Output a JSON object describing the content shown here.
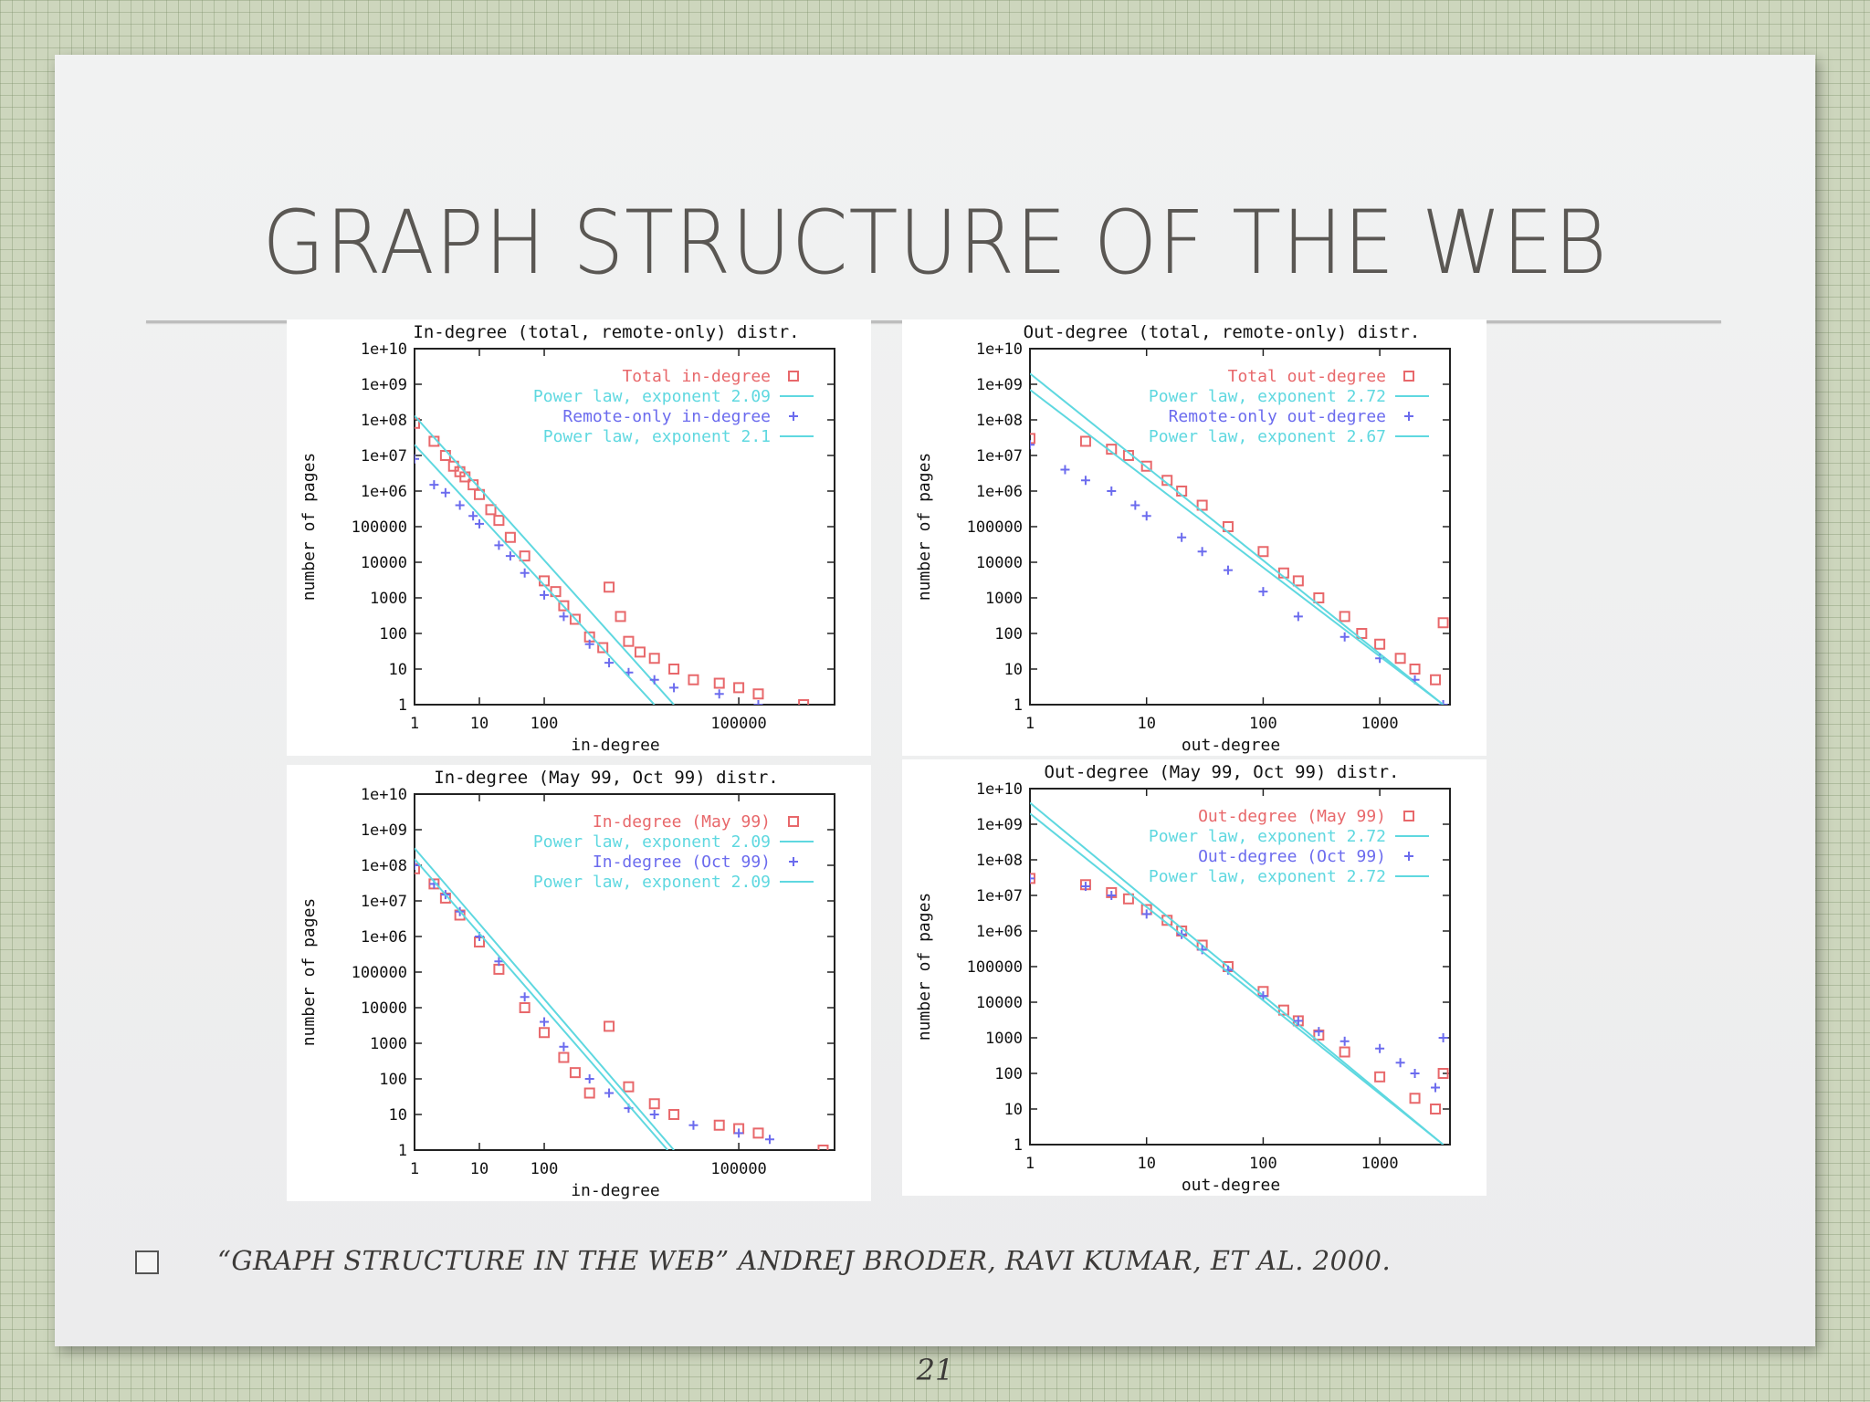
{
  "slide": {
    "title": "GRAPH STRUCTURE OF THE WEB",
    "citation": "“GRAPH STRUCTURE IN THE WEB” ANDREJ  BRODER, RAVI KUMAR, ET AL. 2000.",
    "page_number": "21"
  },
  "colors": {
    "red": "#e8686b",
    "blue": "#6b6bee",
    "cyan": "#5fd8e0",
    "axis": "#222222"
  },
  "chart_data": [
    {
      "type": "scatter",
      "title": "In-degree (total, remote-only) distr.",
      "xlabel": "in-degree",
      "ylabel": "number of pages",
      "x_scale": "log",
      "y_scale": "log",
      "xlim": [
        1,
        3000000
      ],
      "ylim": [
        1,
        10000000000
      ],
      "x_ticks": [
        {
          "v": 1,
          "label": "1"
        },
        {
          "v": 10,
          "label": "10"
        },
        {
          "v": 100,
          "label": "100"
        },
        {
          "v": 100000,
          "label": "100000"
        }
      ],
      "y_ticks": [
        {
          "v": 1,
          "label": "1"
        },
        {
          "v": 10,
          "label": "10"
        },
        {
          "v": 100,
          "label": "100"
        },
        {
          "v": 1000,
          "label": "1000"
        },
        {
          "v": 10000,
          "label": "10000"
        },
        {
          "v": 100000,
          "label": "100000"
        },
        {
          "v": 1000000,
          "label": "1e+06"
        },
        {
          "v": 10000000,
          "label": "1e+07"
        },
        {
          "v": 100000000,
          "label": "1e+08"
        },
        {
          "v": 1000000000,
          "label": "1e+09"
        },
        {
          "v": 10000000000,
          "label": "1e+10"
        }
      ],
      "legend_position": "top-right",
      "series": [
        {
          "name": "Total in-degree",
          "kind": "points",
          "marker": "square",
          "color": "#e8686b",
          "points": [
            [
              1,
              80000000
            ],
            [
              2,
              25000000
            ],
            [
              3,
              10000000
            ],
            [
              4,
              5000000
            ],
            [
              5,
              3500000
            ],
            [
              6,
              2500000
            ],
            [
              8,
              1500000
            ],
            [
              10,
              800000
            ],
            [
              15,
              300000
            ],
            [
              20,
              150000
            ],
            [
              30,
              50000
            ],
            [
              50,
              15000
            ],
            [
              100,
              3000
            ],
            [
              150,
              1500
            ],
            [
              200,
              600
            ],
            [
              300,
              250
            ],
            [
              500,
              80
            ],
            [
              800,
              40
            ],
            [
              1000,
              2000
            ],
            [
              1500,
              300
            ],
            [
              2000,
              60
            ],
            [
              3000,
              30
            ],
            [
              5000,
              20
            ],
            [
              10000,
              10
            ],
            [
              20000,
              5
            ],
            [
              50000,
              4
            ],
            [
              100000,
              3
            ],
            [
              200000,
              2
            ],
            [
              1000000,
              1
            ]
          ]
        },
        {
          "name": "Power law, exponent 2.09",
          "kind": "line",
          "color": "#5fd8e0",
          "from": [
            1,
            130000000
          ],
          "to": [
            10000,
            1
          ]
        },
        {
          "name": "Remote-only in-degree",
          "kind": "points",
          "marker": "plus",
          "color": "#6b6bee",
          "points": [
            [
              1,
              8000000
            ],
            [
              2,
              1500000
            ],
            [
              3,
              900000
            ],
            [
              5,
              400000
            ],
            [
              8,
              200000
            ],
            [
              10,
              120000
            ],
            [
              20,
              30000
            ],
            [
              30,
              15000
            ],
            [
              50,
              5000
            ],
            [
              100,
              1200
            ],
            [
              200,
              300
            ],
            [
              500,
              50
            ],
            [
              1000,
              15
            ],
            [
              2000,
              8
            ],
            [
              5000,
              5
            ],
            [
              10000,
              3
            ],
            [
              50000,
              2
            ],
            [
              200000,
              1
            ]
          ]
        },
        {
          "name": "Power law, exponent 2.1",
          "kind": "line",
          "color": "#5fd8e0",
          "from": [
            1,
            20000000
          ],
          "to": [
            5000,
            1
          ]
        }
      ]
    },
    {
      "type": "scatter",
      "title": "Out-degree (total, remote-only) distr.",
      "xlabel": "out-degree",
      "ylabel": "number of pages",
      "x_scale": "log",
      "y_scale": "log",
      "xlim": [
        1,
        4000
      ],
      "ylim": [
        1,
        10000000000
      ],
      "x_ticks": [
        {
          "v": 1,
          "label": "1"
        },
        {
          "v": 10,
          "label": "10"
        },
        {
          "v": 100,
          "label": "100"
        },
        {
          "v": 1000,
          "label": "1000"
        }
      ],
      "y_ticks": [
        {
          "v": 1,
          "label": "1"
        },
        {
          "v": 10,
          "label": "10"
        },
        {
          "v": 100,
          "label": "100"
        },
        {
          "v": 1000,
          "label": "1000"
        },
        {
          "v": 10000,
          "label": "10000"
        },
        {
          "v": 100000,
          "label": "100000"
        },
        {
          "v": 1000000,
          "label": "1e+06"
        },
        {
          "v": 10000000,
          "label": "1e+07"
        },
        {
          "v": 100000000,
          "label": "1e+08"
        },
        {
          "v": 1000000000,
          "label": "1e+09"
        },
        {
          "v": 10000000000,
          "label": "1e+10"
        }
      ],
      "legend_position": "top-right",
      "series": [
        {
          "name": "Total out-degree",
          "kind": "points",
          "marker": "square",
          "color": "#e8686b",
          "points": [
            [
              1,
              30000000
            ],
            [
              3,
              25000000
            ],
            [
              5,
              15000000
            ],
            [
              7,
              10000000
            ],
            [
              10,
              5000000
            ],
            [
              15,
              2000000
            ],
            [
              20,
              1000000
            ],
            [
              30,
              400000
            ],
            [
              50,
              100000
            ],
            [
              100,
              20000
            ],
            [
              150,
              5000
            ],
            [
              200,
              3000
            ],
            [
              300,
              1000
            ],
            [
              500,
              300
            ],
            [
              700,
              100
            ],
            [
              1000,
              50
            ],
            [
              1500,
              20
            ],
            [
              2000,
              10
            ],
            [
              3000,
              5
            ],
            [
              3500,
              200
            ]
          ]
        },
        {
          "name": "Power law, exponent 2.72",
          "kind": "line",
          "color": "#5fd8e0",
          "from": [
            1,
            2000000000
          ],
          "to": [
            3500,
            1
          ]
        },
        {
          "name": "Remote-only out-degree",
          "kind": "points",
          "marker": "plus",
          "color": "#6b6bee",
          "points": [
            [
              1,
              20000000
            ],
            [
              2,
              4000000
            ],
            [
              3,
              2000000
            ],
            [
              5,
              1000000
            ],
            [
              8,
              400000
            ],
            [
              10,
              200000
            ],
            [
              20,
              50000
            ],
            [
              30,
              20000
            ],
            [
              50,
              6000
            ],
            [
              100,
              1500
            ],
            [
              200,
              300
            ],
            [
              500,
              80
            ],
            [
              1000,
              20
            ],
            [
              2000,
              5
            ],
            [
              3500,
              1
            ]
          ]
        },
        {
          "name": "Power law, exponent 2.67",
          "kind": "line",
          "color": "#5fd8e0",
          "from": [
            1,
            700000000
          ],
          "to": [
            3500,
            1
          ]
        }
      ]
    },
    {
      "type": "scatter",
      "title": "In-degree (May 99, Oct 99) distr.",
      "xlabel": "in-degree",
      "ylabel": "number of pages",
      "x_scale": "log",
      "y_scale": "log",
      "xlim": [
        1,
        3000000
      ],
      "ylim": [
        1,
        10000000000
      ],
      "x_ticks": [
        {
          "v": 1,
          "label": "1"
        },
        {
          "v": 10,
          "label": "10"
        },
        {
          "v": 100,
          "label": "100"
        },
        {
          "v": 100000,
          "label": "100000"
        }
      ],
      "y_ticks": [
        {
          "v": 1,
          "label": "1"
        },
        {
          "v": 10,
          "label": "10"
        },
        {
          "v": 100,
          "label": "100"
        },
        {
          "v": 1000,
          "label": "1000"
        },
        {
          "v": 10000,
          "label": "10000"
        },
        {
          "v": 100000,
          "label": "100000"
        },
        {
          "v": 1000000,
          "label": "1e+06"
        },
        {
          "v": 10000000,
          "label": "1e+07"
        },
        {
          "v": 100000000,
          "label": "1e+08"
        },
        {
          "v": 1000000000,
          "label": "1e+09"
        },
        {
          "v": 10000000000,
          "label": "1e+10"
        }
      ],
      "legend_position": "top-right",
      "series": [
        {
          "name": "In-degree (May 99)",
          "kind": "points",
          "marker": "square",
          "color": "#e8686b",
          "points": [
            [
              1,
              80000000
            ],
            [
              2,
              30000000
            ],
            [
              3,
              12000000
            ],
            [
              5,
              4000000
            ],
            [
              10,
              700000
            ],
            [
              20,
              120000
            ],
            [
              50,
              10000
            ],
            [
              100,
              2000
            ],
            [
              200,
              400
            ],
            [
              300,
              150
            ],
            [
              500,
              40
            ],
            [
              1000,
              3000
            ],
            [
              2000,
              60
            ],
            [
              5000,
              20
            ],
            [
              10000,
              10
            ],
            [
              50000,
              5
            ],
            [
              100000,
              4
            ],
            [
              200000,
              3
            ],
            [
              2000000,
              1
            ]
          ]
        },
        {
          "name": "Power law, exponent 2.09",
          "kind": "line",
          "color": "#5fd8e0",
          "from": [
            1,
            300000000
          ],
          "to": [
            10000,
            1
          ]
        },
        {
          "name": "In-degree (Oct 99)",
          "kind": "points",
          "marker": "plus",
          "color": "#6b6bee",
          "points": [
            [
              1,
              100000000
            ],
            [
              2,
              30000000
            ],
            [
              3,
              15000000
            ],
            [
              5,
              5000000
            ],
            [
              10,
              1000000
            ],
            [
              20,
              200000
            ],
            [
              50,
              20000
            ],
            [
              100,
              4000
            ],
            [
              200,
              800
            ],
            [
              500,
              100
            ],
            [
              1000,
              40
            ],
            [
              2000,
              15
            ],
            [
              5000,
              10
            ],
            [
              20000,
              5
            ],
            [
              100000,
              3
            ],
            [
              300000,
              2
            ]
          ]
        },
        {
          "name": "Power law, exponent 2.09",
          "kind": "line",
          "color": "#5fd8e0",
          "from": [
            1,
            150000000
          ],
          "to": [
            8000,
            1
          ]
        }
      ]
    },
    {
      "type": "scatter",
      "title": "Out-degree (May 99, Oct 99) distr.",
      "xlabel": "out-degree",
      "ylabel": "number of pages",
      "x_scale": "log",
      "y_scale": "log",
      "xlim": [
        1,
        4000
      ],
      "ylim": [
        1,
        10000000000
      ],
      "x_ticks": [
        {
          "v": 1,
          "label": "1"
        },
        {
          "v": 10,
          "label": "10"
        },
        {
          "v": 100,
          "label": "100"
        },
        {
          "v": 1000,
          "label": "1000"
        }
      ],
      "y_ticks": [
        {
          "v": 1,
          "label": "1"
        },
        {
          "v": 10,
          "label": "10"
        },
        {
          "v": 100,
          "label": "100"
        },
        {
          "v": 1000,
          "label": "1000"
        },
        {
          "v": 10000,
          "label": "10000"
        },
        {
          "v": 100000,
          "label": "100000"
        },
        {
          "v": 1000000,
          "label": "1e+06"
        },
        {
          "v": 10000000,
          "label": "1e+07"
        },
        {
          "v": 100000000,
          "label": "1e+08"
        },
        {
          "v": 1000000000,
          "label": "1e+09"
        },
        {
          "v": 10000000000,
          "label": "1e+10"
        }
      ],
      "legend_position": "top-right",
      "series": [
        {
          "name": "Out-degree (May 99)",
          "kind": "points",
          "marker": "square",
          "color": "#e8686b",
          "points": [
            [
              1,
              30000000
            ],
            [
              3,
              20000000
            ],
            [
              5,
              12000000
            ],
            [
              7,
              8000000
            ],
            [
              10,
              4000000
            ],
            [
              15,
              2000000
            ],
            [
              20,
              1000000
            ],
            [
              30,
              400000
            ],
            [
              50,
              100000
            ],
            [
              100,
              20000
            ],
            [
              150,
              6000
            ],
            [
              200,
              3000
            ],
            [
              300,
              1200
            ],
            [
              500,
              400
            ],
            [
              1000,
              80
            ],
            [
              2000,
              20
            ],
            [
              3000,
              10
            ],
            [
              3500,
              100
            ]
          ]
        },
        {
          "name": "Power law, exponent 2.72",
          "kind": "line",
          "color": "#5fd8e0",
          "from": [
            1,
            4000000000
          ],
          "to": [
            3500,
            1
          ]
        },
        {
          "name": "Out-degree (Oct 99)",
          "kind": "points",
          "marker": "plus",
          "color": "#6b6bee",
          "points": [
            [
              1,
              30000000
            ],
            [
              3,
              18000000
            ],
            [
              5,
              10000000
            ],
            [
              10,
              3000000
            ],
            [
              20,
              800000
            ],
            [
              30,
              300000
            ],
            [
              50,
              80000
            ],
            [
              100,
              15000
            ],
            [
              200,
              3000
            ],
            [
              300,
              1500
            ],
            [
              500,
              800
            ],
            [
              1000,
              500
            ],
            [
              1500,
              200
            ],
            [
              2000,
              100
            ],
            [
              3000,
              40
            ],
            [
              3500,
              1000
            ]
          ]
        },
        {
          "name": "Power law, exponent 2.72",
          "kind": "line",
          "color": "#5fd8e0",
          "from": [
            1,
            2000000000
          ],
          "to": [
            3500,
            1
          ]
        }
      ]
    }
  ]
}
